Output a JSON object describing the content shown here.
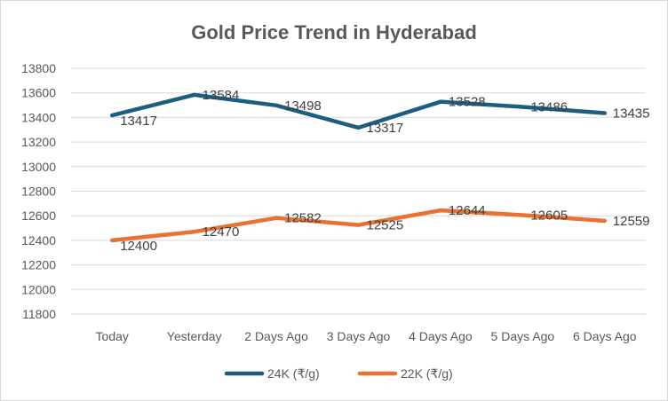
{
  "chart_data": {
    "type": "line",
    "title": "Gold Price Trend in Hyderabad",
    "xlabel": "",
    "ylabel": "",
    "categories": [
      "Today",
      "Yesterday",
      "2 Days Ago",
      "3 Days Ago",
      "4 Days Ago",
      "5 Days Ago",
      "6 Days Ago"
    ],
    "ylim": [
      11800,
      13800
    ],
    "yticks": [
      11800,
      12000,
      12200,
      12400,
      12600,
      12800,
      13000,
      13200,
      13400,
      13600,
      13800
    ],
    "grid": true,
    "legend_position": "bottom",
    "data_labels": true,
    "series": [
      {
        "name": "24K (₹/g)",
        "color": "#1b5e80",
        "values": [
          13417,
          13584,
          13498,
          13317,
          13528,
          13486,
          13435
        ]
      },
      {
        "name": "22K (₹/g)",
        "color": "#e97132",
        "values": [
          12400,
          12470,
          12582,
          12525,
          12644,
          12605,
          12559
        ]
      }
    ]
  }
}
